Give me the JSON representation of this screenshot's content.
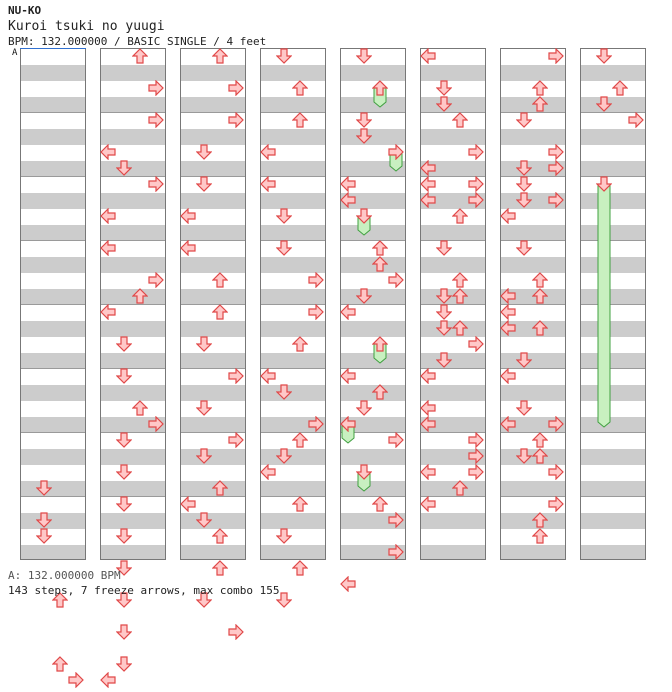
{
  "header": {
    "artist": "NU-KO",
    "title": "Kuroi tsuki no yuugi",
    "info": "BPM: 132.000000 / BASIC SINGLE / 4 feet"
  },
  "footer": {
    "bpm_line": "A: 132.000000 BPM",
    "stats": "143 steps, 7 freeze arrows, max combo 155"
  },
  "bpm_marker": "A",
  "colors": {
    "arrow_fill": "#ffc8c8",
    "arrow_stroke": "#e04848",
    "freeze_fill": "#c8f0c0",
    "freeze_stroke": "#40a040",
    "row_gray": "#cccccc"
  },
  "chart_data": {
    "type": "step-chart",
    "lanes": [
      "left",
      "down",
      "up",
      "right"
    ],
    "rows_per_column": 32,
    "columns": [
      {
        "notes": [
          [
            27,
            "down"
          ],
          [
            29,
            "down"
          ],
          [
            30,
            "down"
          ],
          [
            34,
            "up"
          ],
          [
            38,
            "up"
          ],
          [
            39,
            "right"
          ]
        ],
        "freezes": []
      },
      {
        "notes": [
          [
            0,
            "up"
          ],
          [
            2,
            "right"
          ],
          [
            4,
            "right"
          ],
          [
            6,
            "left"
          ],
          [
            7,
            "down"
          ],
          [
            8,
            "right"
          ],
          [
            10,
            "left"
          ],
          [
            12,
            "left"
          ],
          [
            14,
            "right"
          ],
          [
            15,
            "up"
          ],
          [
            16,
            "left"
          ],
          [
            18,
            "down"
          ],
          [
            20,
            "down"
          ],
          [
            22,
            "up"
          ],
          [
            23,
            "right"
          ],
          [
            24,
            "down"
          ],
          [
            26,
            "down"
          ],
          [
            28,
            "down"
          ],
          [
            30,
            "down"
          ],
          [
            32,
            "down"
          ],
          [
            34,
            "down"
          ],
          [
            36,
            "down"
          ],
          [
            38,
            "down"
          ],
          [
            39,
            "left"
          ]
        ],
        "freezes": []
      },
      {
        "notes": [
          [
            0,
            "up"
          ],
          [
            2,
            "right"
          ],
          [
            4,
            "right"
          ],
          [
            6,
            "down"
          ],
          [
            8,
            "down"
          ],
          [
            10,
            "left"
          ],
          [
            12,
            "left"
          ],
          [
            14,
            "up"
          ],
          [
            16,
            "up"
          ],
          [
            18,
            "down"
          ],
          [
            20,
            "right"
          ],
          [
            22,
            "down"
          ],
          [
            24,
            "right"
          ],
          [
            25,
            "down"
          ],
          [
            27,
            "up"
          ],
          [
            28,
            "left"
          ],
          [
            29,
            "down"
          ],
          [
            30,
            "up"
          ],
          [
            32,
            "up"
          ],
          [
            34,
            "down"
          ],
          [
            36,
            "right"
          ]
        ],
        "freezes": []
      },
      {
        "notes": [
          [
            0,
            "down"
          ],
          [
            2,
            "up"
          ],
          [
            4,
            "up"
          ],
          [
            6,
            "left"
          ],
          [
            8,
            "left"
          ],
          [
            10,
            "down"
          ],
          [
            12,
            "down"
          ],
          [
            14,
            "right"
          ],
          [
            16,
            "right"
          ],
          [
            18,
            "up"
          ],
          [
            20,
            "left"
          ],
          [
            21,
            "down"
          ],
          [
            23,
            "right"
          ],
          [
            24,
            "up"
          ],
          [
            25,
            "down"
          ],
          [
            26,
            "left"
          ],
          [
            28,
            "up"
          ],
          [
            30,
            "down"
          ],
          [
            32,
            "up"
          ],
          [
            34,
            "down"
          ]
        ],
        "freezes": []
      },
      {
        "notes": [
          [
            0,
            "down"
          ],
          [
            2,
            "up"
          ],
          [
            4,
            "down"
          ],
          [
            5,
            "down"
          ],
          [
            6,
            "right"
          ],
          [
            8,
            "left"
          ],
          [
            9,
            "left"
          ],
          [
            10,
            "down"
          ],
          [
            12,
            "up"
          ],
          [
            13,
            "up"
          ],
          [
            14,
            "right"
          ],
          [
            15,
            "down"
          ],
          [
            16,
            "left"
          ],
          [
            18,
            "up"
          ],
          [
            20,
            "left"
          ],
          [
            21,
            "up"
          ],
          [
            22,
            "down"
          ],
          [
            23,
            "left"
          ],
          [
            24,
            "right"
          ],
          [
            26,
            "down"
          ],
          [
            28,
            "up"
          ],
          [
            29,
            "right"
          ],
          [
            31,
            "right"
          ],
          [
            33,
            "left"
          ]
        ],
        "freezes": [
          [
            2,
            3,
            "up"
          ],
          [
            6,
            7,
            "right"
          ],
          [
            10,
            11,
            "down"
          ],
          [
            18,
            19,
            "up"
          ],
          [
            23,
            24,
            "left"
          ],
          [
            26,
            27,
            "down"
          ]
        ]
      },
      {
        "notes": [
          [
            0,
            "left"
          ],
          [
            2,
            "down"
          ],
          [
            3,
            "down"
          ],
          [
            4,
            "up"
          ],
          [
            6,
            "right"
          ],
          [
            7,
            "left"
          ],
          [
            8,
            "right"
          ],
          [
            8,
            "left"
          ],
          [
            9,
            "left"
          ],
          [
            9,
            "right"
          ],
          [
            10,
            "up"
          ],
          [
            12,
            "down"
          ],
          [
            14,
            "up"
          ],
          [
            15,
            "down"
          ],
          [
            15,
            "up"
          ],
          [
            16,
            "down"
          ],
          [
            17,
            "down"
          ],
          [
            17,
            "up"
          ],
          [
            18,
            "right"
          ],
          [
            19,
            "down"
          ],
          [
            20,
            "left"
          ],
          [
            22,
            "left"
          ],
          [
            23,
            "left"
          ],
          [
            24,
            "right"
          ],
          [
            25,
            "right"
          ],
          [
            26,
            "left"
          ],
          [
            26,
            "right"
          ],
          [
            27,
            "up"
          ],
          [
            28,
            "left"
          ]
        ],
        "freezes": []
      },
      {
        "notes": [
          [
            0,
            "right"
          ],
          [
            2,
            "up"
          ],
          [
            3,
            "up"
          ],
          [
            4,
            "down"
          ],
          [
            6,
            "right"
          ],
          [
            7,
            "down"
          ],
          [
            7,
            "right"
          ],
          [
            8,
            "down"
          ],
          [
            9,
            "down"
          ],
          [
            9,
            "right"
          ],
          [
            10,
            "left"
          ],
          [
            12,
            "down"
          ],
          [
            14,
            "up"
          ],
          [
            15,
            "left"
          ],
          [
            15,
            "up"
          ],
          [
            16,
            "left"
          ],
          [
            17,
            "left"
          ],
          [
            17,
            "up"
          ],
          [
            19,
            "down"
          ],
          [
            20,
            "left"
          ],
          [
            22,
            "down"
          ],
          [
            23,
            "left"
          ],
          [
            23,
            "right"
          ],
          [
            24,
            "up"
          ],
          [
            25,
            "down"
          ],
          [
            25,
            "up"
          ],
          [
            26,
            "right"
          ],
          [
            28,
            "right"
          ],
          [
            29,
            "up"
          ],
          [
            30,
            "up"
          ]
        ],
        "freezes": []
      },
      {
        "notes": [
          [
            0,
            "down"
          ],
          [
            2,
            "up"
          ],
          [
            3,
            "down"
          ],
          [
            4,
            "right"
          ],
          [
            8,
            "down"
          ]
        ],
        "freezes": [
          [
            8,
            23,
            "down"
          ]
        ]
      }
    ]
  }
}
